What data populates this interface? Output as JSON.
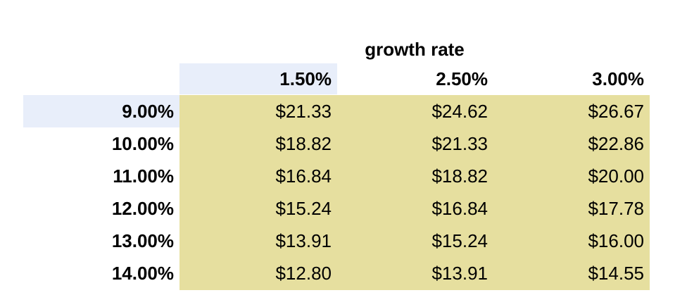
{
  "table": {
    "title": "growth rate",
    "columns": [
      "1.50%",
      "2.50%",
      "3.00%"
    ],
    "rows": [
      {
        "label": "9.00%",
        "values": [
          "$21.33",
          "$24.62",
          "$26.67"
        ]
      },
      {
        "label": "10.00%",
        "values": [
          "$18.82",
          "$21.33",
          "$22.86"
        ]
      },
      {
        "label": "11.00%",
        "values": [
          "$16.84",
          "$18.82",
          "$20.00"
        ]
      },
      {
        "label": "12.00%",
        "values": [
          "$15.24",
          "$16.84",
          "$17.78"
        ]
      },
      {
        "label": "13.00%",
        "values": [
          "$13.91",
          "$15.24",
          "$16.00"
        ]
      },
      {
        "label": "14.00%",
        "values": [
          "$12.80",
          "$13.91",
          "$14.55"
        ]
      }
    ]
  },
  "colors": {
    "data_fill": "#e6df9f",
    "selection_highlight": "#e8eefa"
  }
}
